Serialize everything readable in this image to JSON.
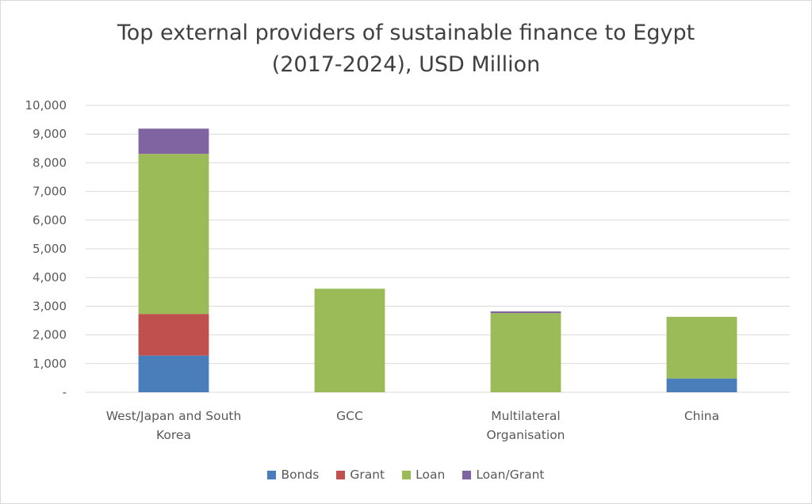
{
  "chart_data": {
    "type": "bar",
    "stacked": true,
    "title_line1": "Top external providers of sustainable finance to Egypt",
    "title_line2": "(2017-2024), USD Million",
    "categories": [
      [
        "West/Japan and South",
        "Korea"
      ],
      [
        "GCC"
      ],
      [
        "Multilateral",
        "Organisation"
      ],
      [
        "China"
      ]
    ],
    "series": [
      {
        "name": "Bonds",
        "color": "#4a7ebb",
        "values": [
          1280,
          0,
          0,
          480
        ]
      },
      {
        "name": "Grant",
        "color": "#c0504d",
        "values": [
          1450,
          0,
          0,
          0
        ]
      },
      {
        "name": "Loan",
        "color": "#9bbb59",
        "values": [
          5580,
          3610,
          2760,
          2150
        ]
      },
      {
        "name": "Loan/Grant",
        "color": "#8064a2",
        "values": [
          880,
          0,
          60,
          0
        ]
      }
    ],
    "ylim": [
      0,
      10000
    ],
    "yticks": [
      0,
      1000,
      2000,
      3000,
      4000,
      5000,
      6000,
      7000,
      8000,
      9000,
      10000
    ],
    "ytick_labels": [
      "-",
      "1,000",
      "2,000",
      "3,000",
      "4,000",
      "5,000",
      "6,000",
      "7,000",
      "8,000",
      "9,000",
      "10,000"
    ],
    "gridlines": true,
    "legend_position": "bottom"
  }
}
